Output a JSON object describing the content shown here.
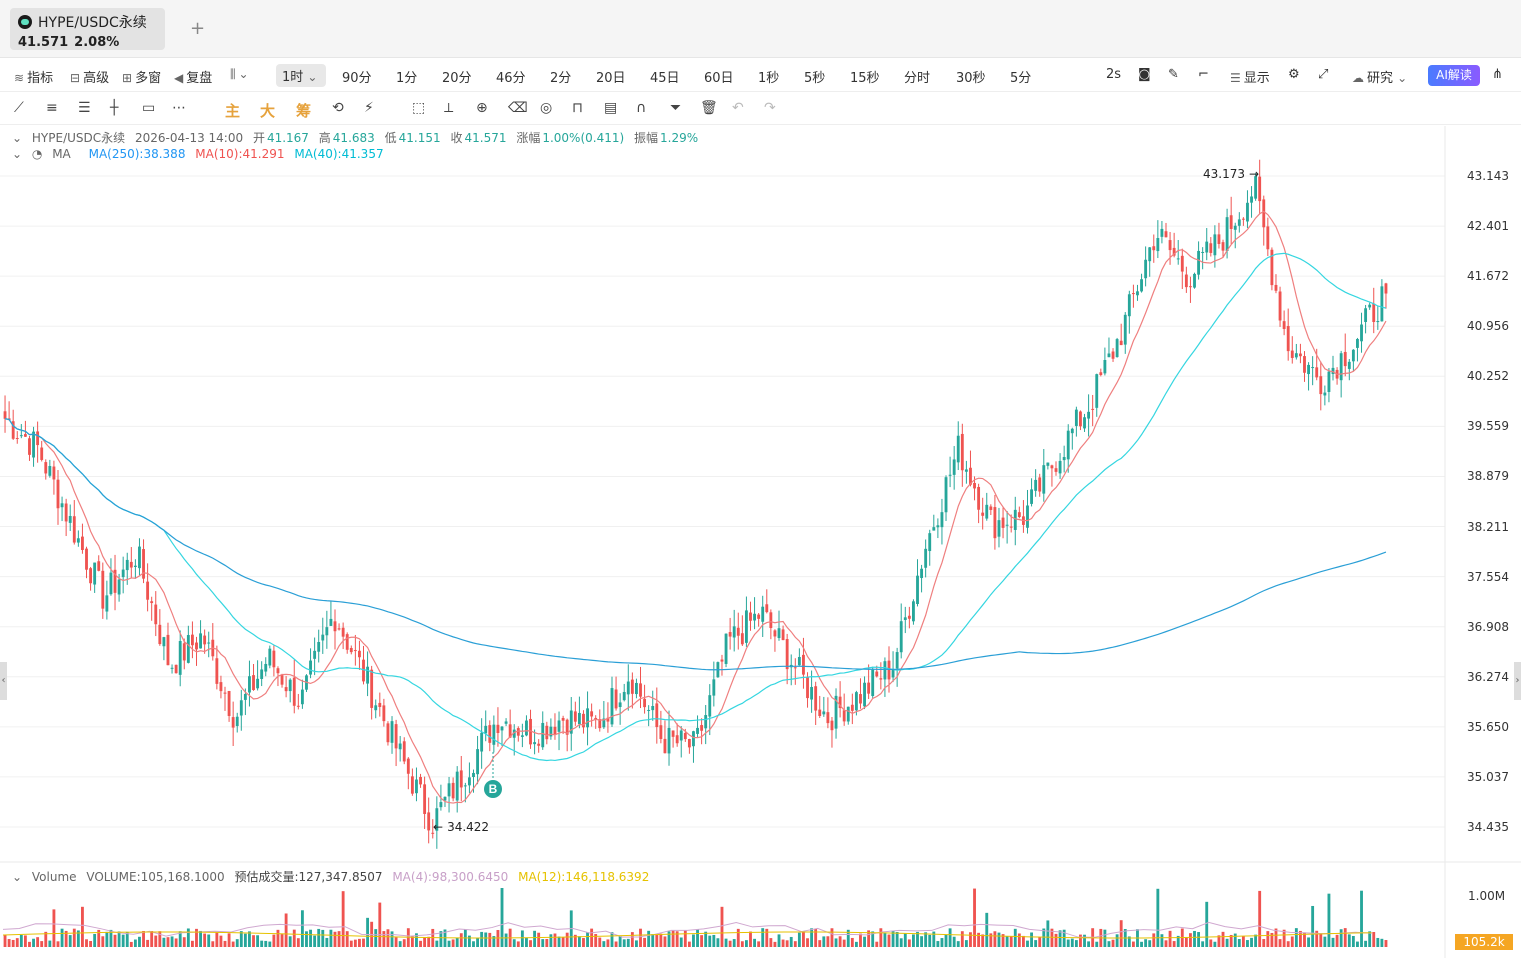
{
  "tab": {
    "symbol": "HYPE/USDC永续",
    "price": "41.571",
    "change": "2.08%",
    "add": "+"
  },
  "intervals": {
    "left_tools": [
      "指标",
      "高级",
      "多窗",
      "复盘"
    ],
    "active": "1时",
    "items": [
      "90分",
      "1分",
      "20分",
      "46分",
      "2分",
      "20日",
      "45日",
      "60日",
      "1秒",
      "5秒",
      "15秒",
      "分时",
      "30秒",
      "5分"
    ],
    "right_speed": "2s",
    "display": "显示",
    "research": "研究",
    "ai": "AI解读"
  },
  "draw_tools": {
    "main": "主",
    "big": "大",
    "chip": "筹"
  },
  "ohlc": {
    "symbol": "HYPE/USDC永续",
    "datetime": "2026-04-13 14:00",
    "open_label": "开",
    "open": "41.167",
    "high_label": "高",
    "high": "41.683",
    "low_label": "低",
    "low": "41.151",
    "close_label": "收",
    "close": "41.571",
    "change_label": "涨幅",
    "change": "1.00%(0.411)",
    "amp_label": "振幅",
    "amp": "1.29%"
  },
  "ma": {
    "name": "MA",
    "ma250": "MA(250):38.388",
    "ma10": "MA(10):41.291",
    "ma40": "MA(40):41.357"
  },
  "volume_info": {
    "name": "Volume",
    "volume": "VOLUME:105,168.1000",
    "est": "预估成交量:127,347.8507",
    "ma4": "MA(4):98,300.6450",
    "ma12": "MA(12):146,118.6392"
  },
  "price_axis": [
    "43.143",
    "42.401",
    "41.672",
    "40.956",
    "40.252",
    "39.559",
    "38.879",
    "38.211",
    "37.554",
    "36.908",
    "36.274",
    "35.650",
    "35.037",
    "34.435"
  ],
  "volume_axis": {
    "top": "1.00M",
    "last": "105.2k"
  },
  "annotations": {
    "high": "43.173",
    "low": "34.422",
    "buy": "B"
  },
  "colors": {
    "up": "#26a69a",
    "down": "#ef5350",
    "ma250": "#2a9fd6",
    "ma10": "#ef7f7f",
    "ma40": "#35d6e0"
  },
  "chart_data": {
    "type": "candlestick",
    "interval": "1时",
    "y_range": [
      34.3,
      43.3
    ],
    "visible_high": 43.173,
    "visible_low": 34.422,
    "anchor_closes": [
      39.9,
      39.5,
      38.5,
      37.5,
      38.1,
      36.6,
      37.0,
      35.9,
      36.7,
      36.1,
      37.3,
      36.4,
      35.4,
      34.5,
      35.2,
      35.9,
      35.7,
      35.9,
      35.8,
      36.5,
      35.6,
      35.5,
      36.9,
      37.3,
      36.6,
      35.9,
      36.2,
      36.6,
      38.2,
      39.5,
      38.5,
      38.6,
      39.4,
      40.1,
      41.1,
      42.4,
      41.8,
      42.3,
      43.0,
      40.9,
      40.4,
      40.9,
      41.6
    ],
    "ma250_end": 38.388,
    "ma10_end": 41.291,
    "ma40_end": 41.357
  }
}
